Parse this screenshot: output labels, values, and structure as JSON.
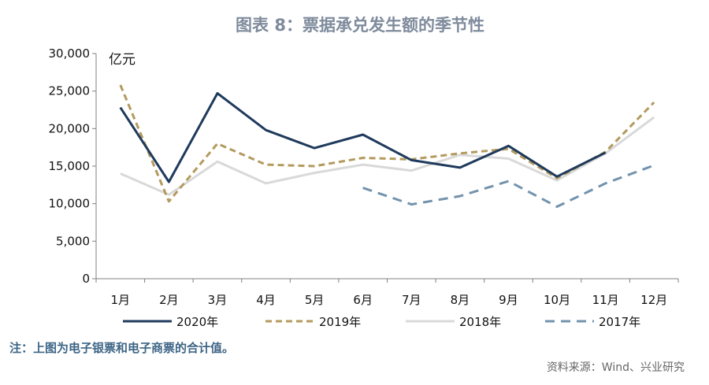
{
  "title": "图表 8：票据承兑发生额的季节性",
  "note": "注：上图为电子银票和电子商票的合计值。",
  "source": "资料来源：Wind、兴业研究",
  "colors": {
    "title": "#7f8b9c",
    "note": "#3d6585",
    "axis": "#808080",
    "s2020": "#1f3a5c",
    "s2019": "#b39a5e",
    "s2018": "#d9d9d9",
    "s2017": "#7393ad"
  },
  "chart_data": {
    "type": "line",
    "title": "图表 8：票据承兑发生额的季节性",
    "ylabel": "亿元",
    "xlabel": "",
    "ylim": [
      0,
      30000
    ],
    "yticks": [
      0,
      5000,
      10000,
      15000,
      20000,
      25000,
      30000
    ],
    "ytick_labels": [
      "0",
      "5,000",
      "10,000",
      "15,000",
      "20,000",
      "25,000",
      "30,000"
    ],
    "grid": false,
    "legend_position": "bottom",
    "categories": [
      "1月",
      "2月",
      "3月",
      "4月",
      "5月",
      "6月",
      "7月",
      "8月",
      "9月",
      "10月",
      "11月",
      "12月"
    ],
    "series": [
      {
        "name": "2020年",
        "style": "solid",
        "values": [
          22800,
          12900,
          24700,
          19800,
          17400,
          19200,
          15800,
          14800,
          17700,
          13600,
          16800,
          null
        ]
      },
      {
        "name": "2019年",
        "style": "dashed",
        "values": [
          25800,
          10300,
          18000,
          15200,
          15000,
          16100,
          15900,
          16700,
          17300,
          13400,
          16900,
          23500
        ]
      },
      {
        "name": "2018年",
        "style": "solid",
        "values": [
          14000,
          11200,
          15600,
          12700,
          14100,
          15200,
          14400,
          16500,
          16000,
          13100,
          16700,
          21500
        ]
      },
      {
        "name": "2017年",
        "style": "dashed",
        "values": [
          null,
          null,
          null,
          null,
          null,
          12100,
          9900,
          11000,
          13000,
          9600,
          12700,
          15100
        ]
      }
    ]
  }
}
